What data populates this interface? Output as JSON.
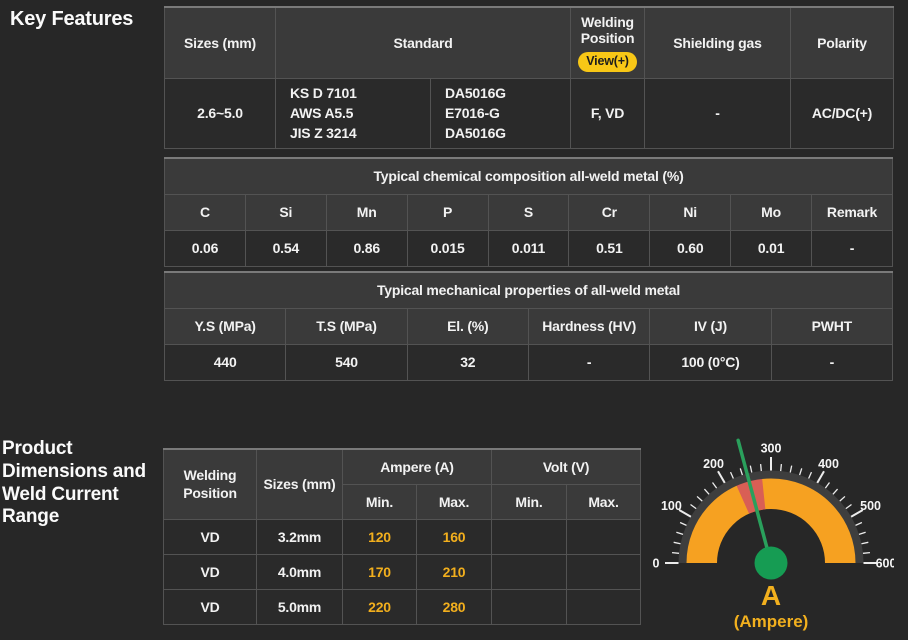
{
  "colors": {
    "page_bg": "#272727",
    "header_cell_bg": "#3a3a3a",
    "body_cell_bg": "#2a2a2a",
    "accent_gold": "#F2AF1D",
    "badge_yellow": "#F8C716",
    "gauge_orange": "#F6A121",
    "gauge_red": "#D95F55",
    "gauge_green": "#169C53"
  },
  "key_features": {
    "title": "Key Features",
    "spec_table": {
      "headers": {
        "sizes": "Sizes (mm)",
        "standard": "Standard",
        "welding_position": "Welding Position",
        "view_badge": "View(+)",
        "shielding_gas": "Shielding gas",
        "polarity": "Polarity"
      },
      "row": {
        "sizes": "2.6~5.0",
        "standard_codes": [
          "KS D 7101",
          "AWS A5.5",
          "JIS Z 3214"
        ],
        "standard_grades": [
          "DA5016G",
          "E7016-G",
          "DA5016G"
        ],
        "welding_position": "F, VD",
        "shielding_gas": "-",
        "polarity": "AC/DC(+)"
      }
    },
    "chemical_table": {
      "title": "Typical chemical composition all-weld metal (%)",
      "columns": [
        "C",
        "Si",
        "Mn",
        "P",
        "S",
        "Cr",
        "Ni",
        "Mo",
        "Remark"
      ],
      "values": [
        "0.06",
        "0.54",
        "0.86",
        "0.015",
        "0.011",
        "0.51",
        "0.60",
        "0.01",
        "-"
      ]
    },
    "mechanical_table": {
      "title": "Typical mechanical properties of all-weld metal",
      "columns": [
        "Y.S (MPa)",
        "T.S (MPa)",
        "El. (%)",
        "Hardness (HV)",
        "IV (J)",
        "PWHT"
      ],
      "values": [
        "440",
        "540",
        "32",
        "-",
        "100 (0°C)",
        "-"
      ]
    }
  },
  "product_section": {
    "title": "Product Dimensions and Weld Current Range",
    "current_table": {
      "headers": {
        "welding_position": "Welding Position",
        "sizes": "Sizes (mm)",
        "ampere": "Ampere (A)",
        "volt": "Volt (V)",
        "min": "Min.",
        "max": "Max."
      },
      "rows": [
        {
          "position": "VD",
          "size": "3.2mm",
          "a_min": "120",
          "a_max": "160",
          "v_min": "",
          "v_max": ""
        },
        {
          "position": "VD",
          "size": "4.0mm",
          "a_min": "170",
          "a_max": "210",
          "v_min": "",
          "v_max": ""
        },
        {
          "position": "VD",
          "size": "5.0mm",
          "a_min": "220",
          "a_max": "280",
          "v_min": "",
          "v_max": ""
        }
      ]
    }
  },
  "chart_data": {
    "type": "gauge",
    "title": "A",
    "subtitle": "(Ampere)",
    "min": 0,
    "max": 600,
    "major_ticks": [
      0,
      100,
      200,
      300,
      400,
      500,
      600
    ],
    "minor_tick_step": 20,
    "band_color": "#F6A121",
    "red_band": {
      "from": 220,
      "to": 280,
      "color": "#D95F55"
    },
    "needle_value": 250,
    "needle_color": "#2AA05C",
    "hub_color": "#169C53",
    "tick_color": "#ececec",
    "label_color": "#f5f5f5"
  }
}
